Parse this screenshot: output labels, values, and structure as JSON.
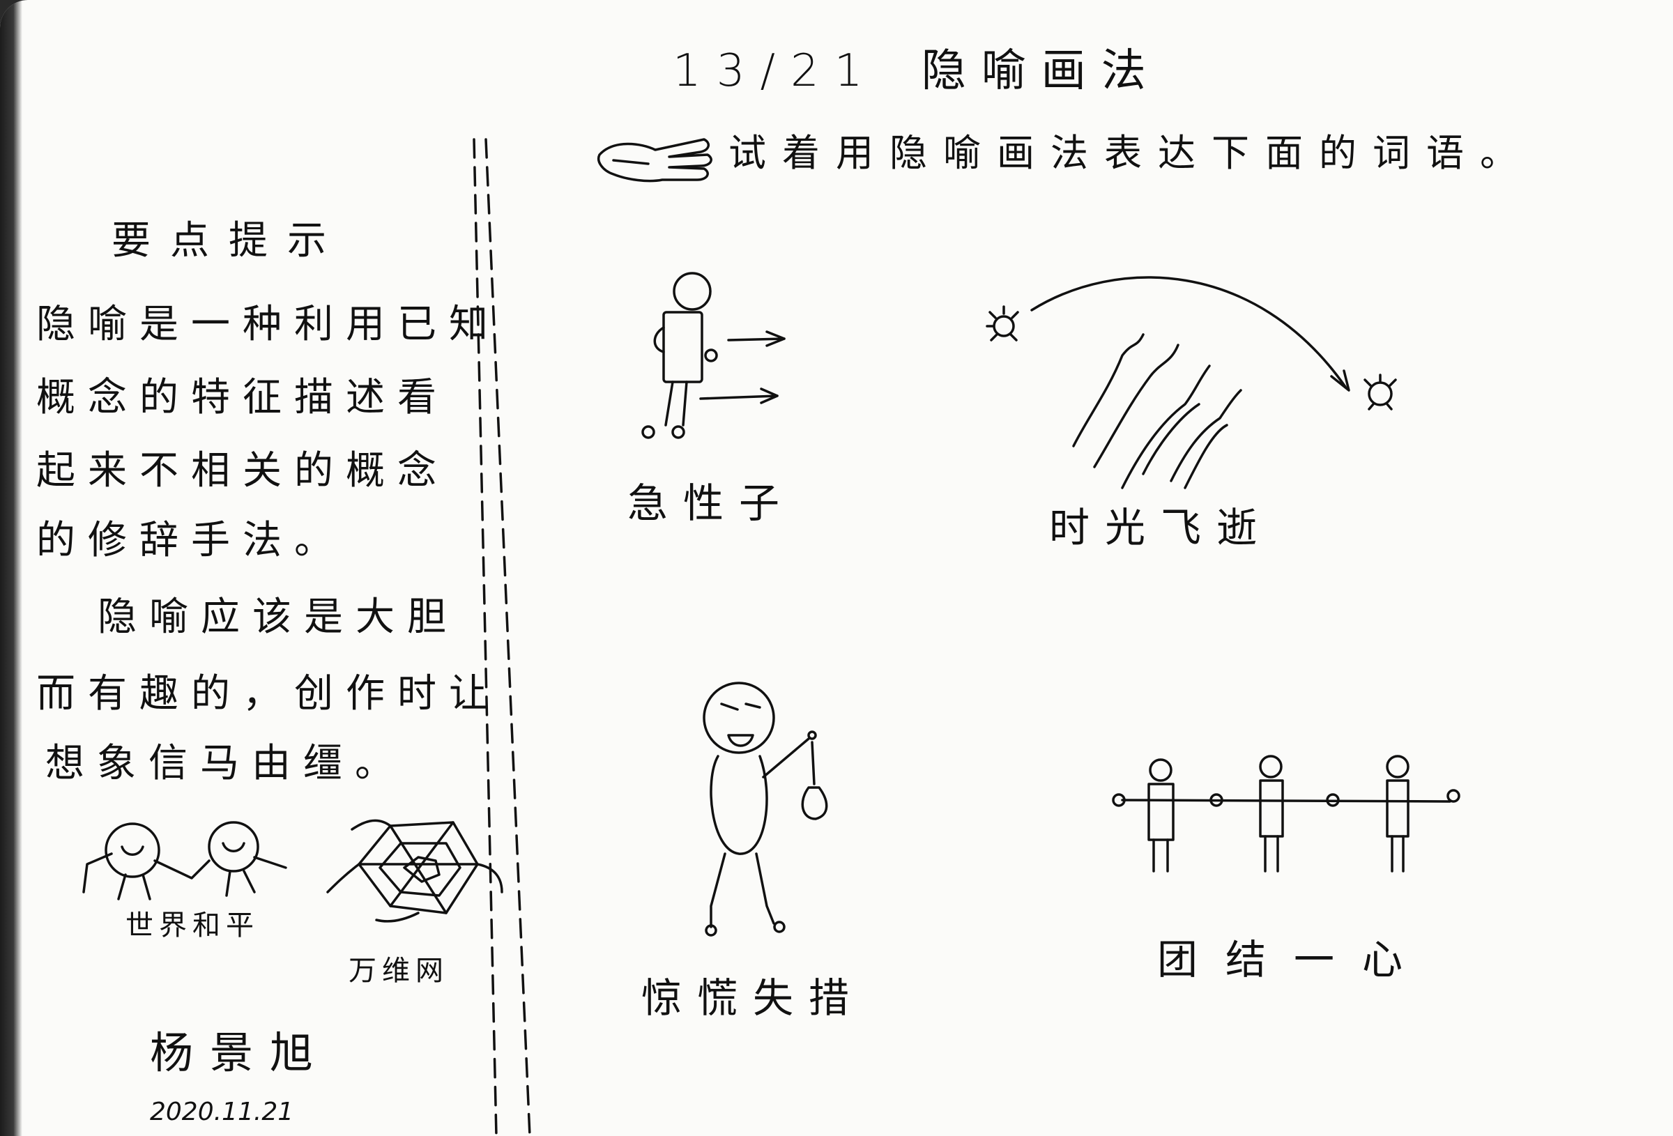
{
  "header": {
    "date": "13/21",
    "title": "隐喻画法",
    "instruction": "试着用隐喻画法表达下面的词语。"
  },
  "tips": {
    "heading": "要点提示",
    "lines": [
      "隐喻是一种利用已知",
      "概念的特征描述看",
      "起来不相关的概念",
      "的修辞手法。",
      "隐喻应该是大胆",
      "而有趣的，创作时让",
      "想象信马由缰。"
    ]
  },
  "examples": [
    {
      "caption": "世界和平",
      "icon": "two-globes-holding-hands-icon"
    },
    {
      "caption": "万维网",
      "icon": "spider-web-icon"
    }
  ],
  "signature": {
    "name": "杨景旭",
    "date": "2020.11.21"
  },
  "drawings": [
    {
      "caption": "急性子",
      "icon": "rushing-person-icon"
    },
    {
      "caption": "时光飞逝",
      "icon": "sun-arc-icon"
    },
    {
      "caption": "惊慌失措",
      "icon": "panicked-person-icon"
    },
    {
      "caption": "团结一心",
      "icon": "linked-figures-icon"
    }
  ]
}
